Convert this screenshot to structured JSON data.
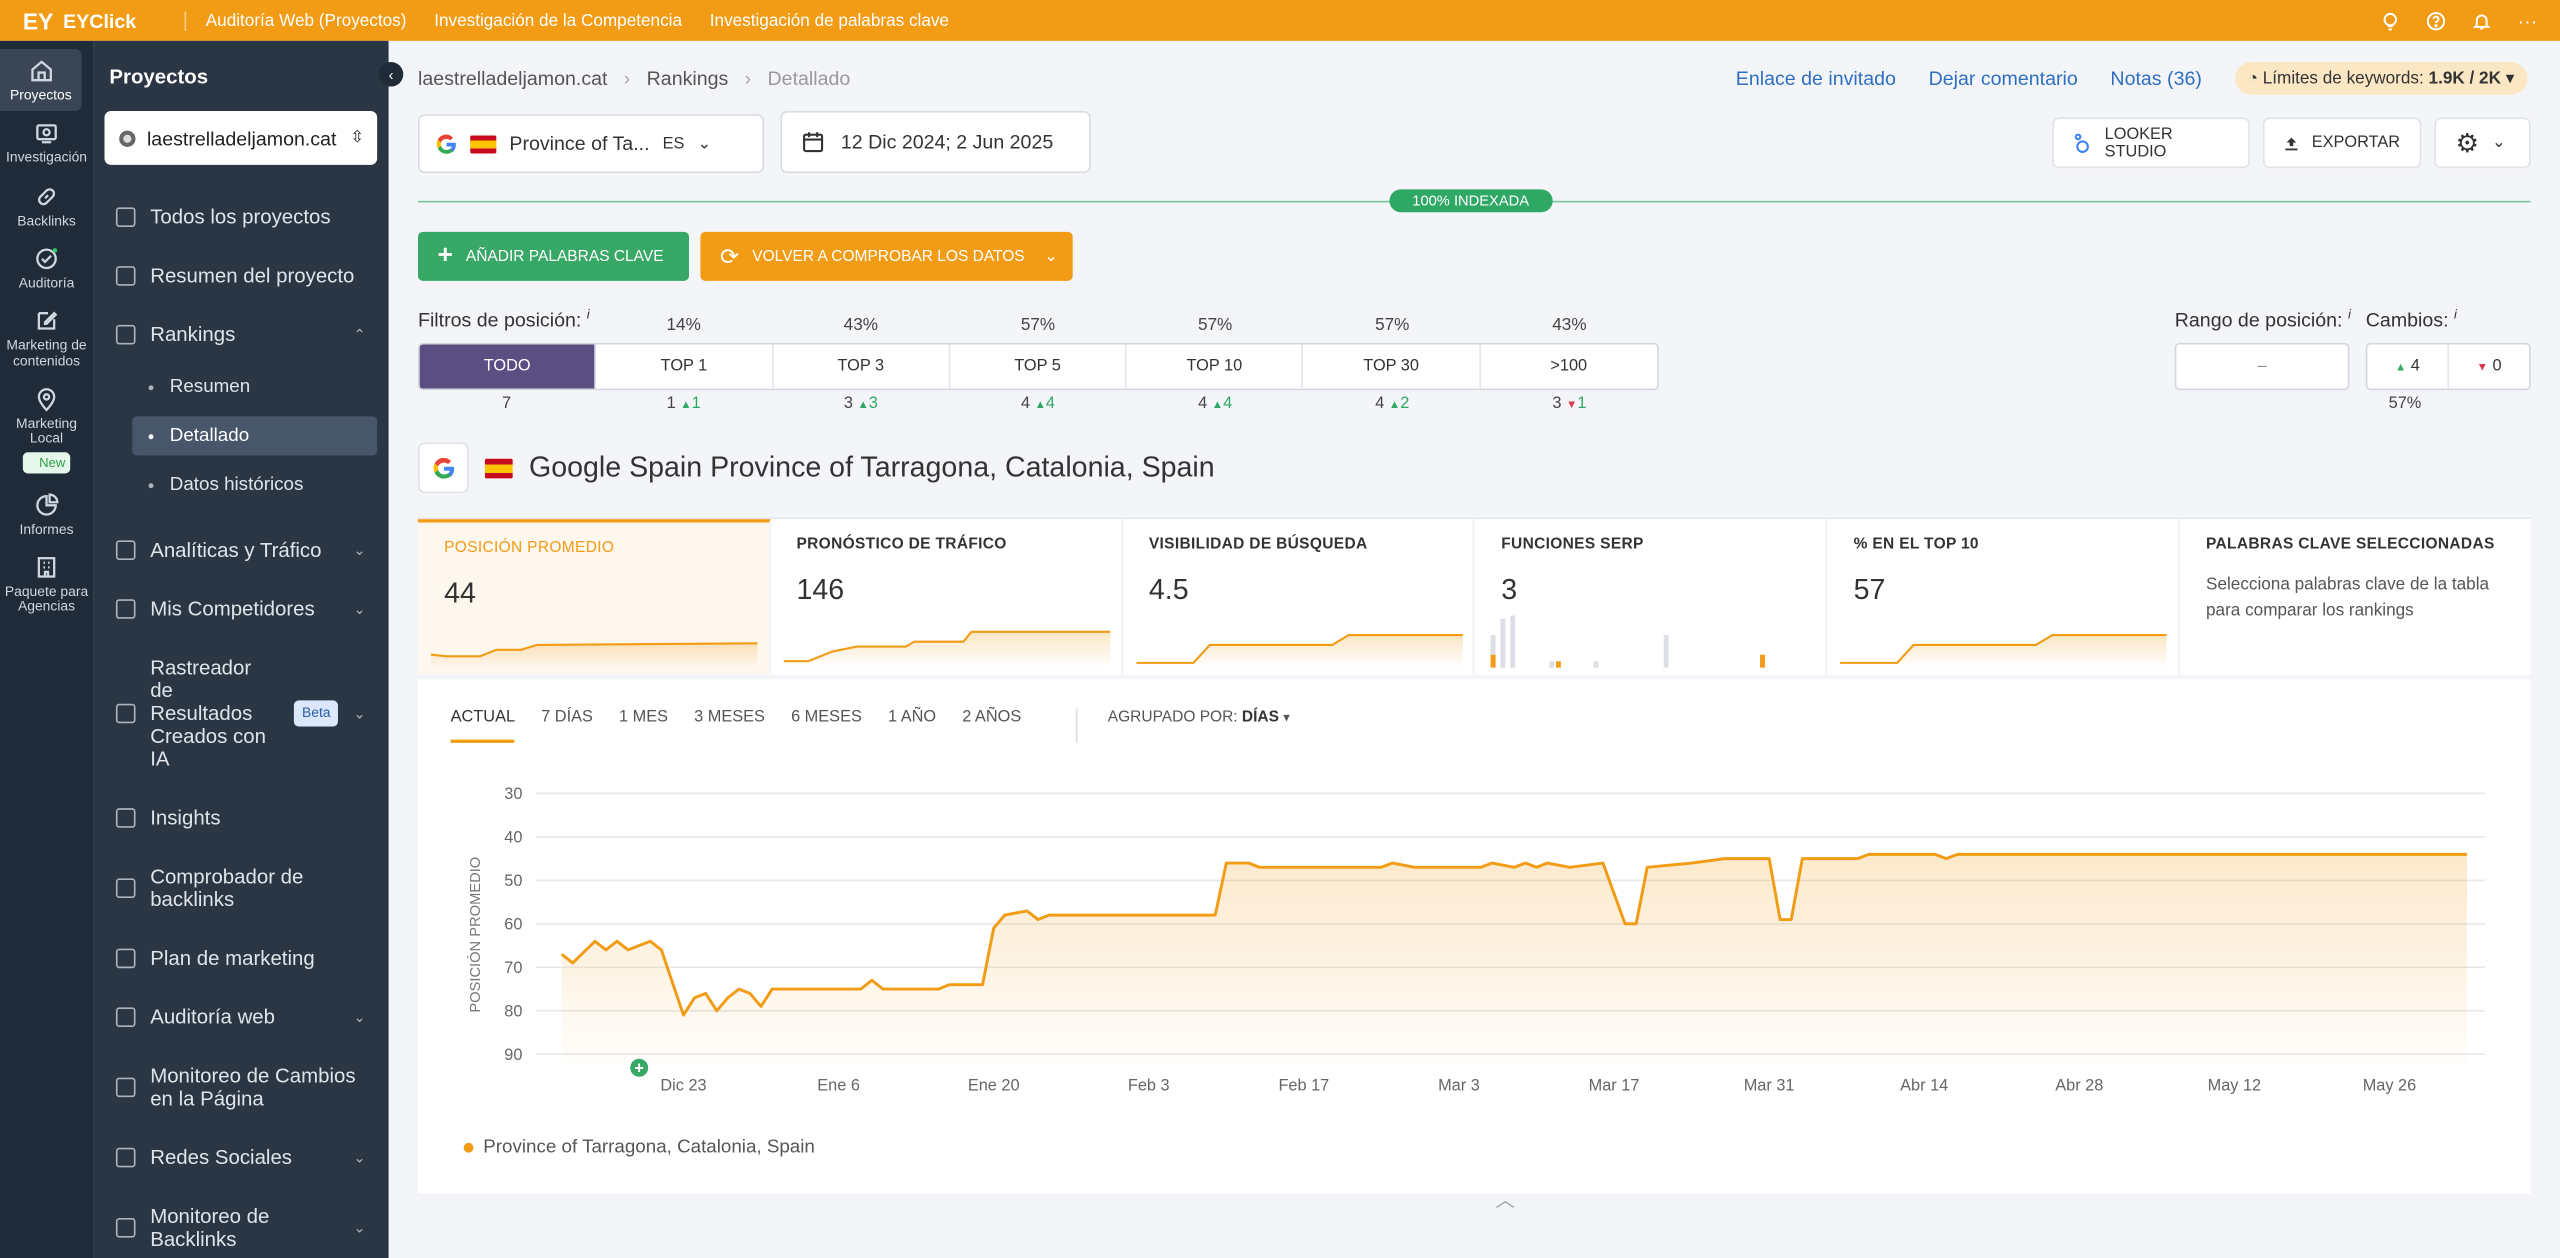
{
  "topbar": {
    "logo_mark": "EY",
    "brand": "EYClick",
    "nav": [
      "Auditoría Web (Proyectos)",
      "Investigación de la Competencia",
      "Investigación de palabras clave"
    ],
    "icons": [
      "bulb-icon",
      "help-icon",
      "bell-icon",
      "more-icon"
    ],
    "more": "···"
  },
  "rail": {
    "items": [
      {
        "label": "Proyectos",
        "icon": "home-icon"
      },
      {
        "label": "Investigación",
        "icon": "research-icon"
      },
      {
        "label": "Backlinks",
        "icon": "link-icon"
      },
      {
        "label": "Auditoría",
        "icon": "audit-icon"
      },
      {
        "label": "Marketing de contenidos",
        "icon": "edit-icon"
      },
      {
        "label": "Marketing Local",
        "icon": "pin-icon"
      },
      {
        "label": "Informes",
        "icon": "chart-pie-icon"
      },
      {
        "label": "Paquete para Agencias",
        "icon": "building-icon"
      }
    ],
    "new_badge": "New"
  },
  "sidebar": {
    "title": "Proyectos",
    "project": "laestrelladeljamon.cat",
    "items": [
      {
        "label": "Todos los proyectos"
      },
      {
        "label": "Resumen del proyecto"
      },
      {
        "label": "Rankings"
      },
      {
        "label": "Analíticas y Tráfico"
      },
      {
        "label": "Mis Competidores"
      },
      {
        "label": "Rastreador de Resultados Creados con IA"
      },
      {
        "label": "Insights"
      },
      {
        "label": "Comprobador de backlinks"
      },
      {
        "label": "Plan de marketing"
      },
      {
        "label": "Auditoría web"
      },
      {
        "label": "Monitoreo de Cambios en la Página"
      },
      {
        "label": "Redes Sociales"
      },
      {
        "label": "Monitoreo de Backlinks"
      }
    ],
    "rankings_sub": [
      "Resumen",
      "Detallado",
      "Datos históricos"
    ],
    "beta": "Beta"
  },
  "breadcrumb": [
    "laestrelladeljamon.cat",
    "Rankings",
    "Detallado"
  ],
  "toplinks": {
    "guest": "Enlace de invitado",
    "comment": "Dejar comentario",
    "notes": "Notas (36)",
    "kw_label": "Límites de keywords:",
    "kw_value": "1.9K / 2K"
  },
  "engine": {
    "location": "Province of Ta...",
    "lang": "ES"
  },
  "daterange": "12 Dic 2024; 2 Jun 2025",
  "buttons": {
    "looker": "LOOKER STUDIO",
    "export": "EXPORTAR",
    "add_keywords": "AÑADIR PALABRAS CLAVE",
    "recheck": "VOLVER A COMPROBAR LOS DATOS"
  },
  "indexed": "100% INDEXADA",
  "filters": {
    "label": "Filtros de posición:",
    "tabs": [
      {
        "label": "TODO",
        "pct": "",
        "count": "7",
        "delta": "",
        "dir": ""
      },
      {
        "label": "TOP 1",
        "pct": "14%",
        "count": "1",
        "delta": "1",
        "dir": "up"
      },
      {
        "label": "TOP 3",
        "pct": "43%",
        "count": "3",
        "delta": "3",
        "dir": "up"
      },
      {
        "label": "TOP 5",
        "pct": "57%",
        "count": "4",
        "delta": "4",
        "dir": "up"
      },
      {
        "label": "TOP 10",
        "pct": "57%",
        "count": "4",
        "delta": "4",
        "dir": "up"
      },
      {
        "label": "TOP 30",
        "pct": "57%",
        "count": "4",
        "delta": "2",
        "dir": "up"
      },
      {
        "label": ">100",
        "pct": "43%",
        "count": "3",
        "delta": "1",
        "dir": "down"
      }
    ],
    "range_label": "Rango de posición:",
    "range_value": "–",
    "changes_label": "Cambios:",
    "changes_up": "4",
    "changes_down": "0",
    "changes_pct": "57%"
  },
  "location_title": "Google Spain Province of Tarragona, Catalonia, Spain",
  "metrics": [
    {
      "title": "POSICIÓN PROMEDIO",
      "value": "44"
    },
    {
      "title": "PRONÓSTICO DE TRÁFICO",
      "value": "146"
    },
    {
      "title": "VISIBILIDAD DE BÚSQUEDA",
      "value": "4.5"
    },
    {
      "title": "FUNCIONES SERP",
      "value": "3"
    },
    {
      "title": "% EN EL TOP 10",
      "value": "57"
    },
    {
      "title": "PALABRAS CLAVE SELECCIONADAS",
      "value": "",
      "desc": "Selecciona palabras clave de la tabla para comparar los rankings"
    }
  ],
  "periods": [
    "ACTUAL",
    "7 DÍAS",
    "1 MES",
    "3 MESES",
    "6 MESES",
    "1 AÑO",
    "2 AÑOS"
  ],
  "groupby_label": "AGRUPADO POR:",
  "groupby_value": "DÍAS",
  "colors": {
    "accent": "#f29b14",
    "green": "#37a866",
    "purple": "#5b4e83",
    "sidebar": "#2a3644"
  },
  "chart_data": {
    "type": "line",
    "title": "",
    "ylabel": "POSICIÓN PROMEDIO",
    "xlabel": "",
    "y_reversed": true,
    "ylim": [
      30,
      92
    ],
    "yticks": [
      30,
      40,
      50,
      60,
      70,
      80,
      90
    ],
    "x_range": [
      "2024-12-12",
      "2025-06-02"
    ],
    "xtick_labels": [
      "Dic 23",
      "Ene 6",
      "Ene 20",
      "Feb 3",
      "Feb 17",
      "Mar 3",
      "Mar 17",
      "Mar 31",
      "Abr 14",
      "Abr 28",
      "May 12",
      "May 26"
    ],
    "xtick_dates": [
      "2024-12-23",
      "2025-01-06",
      "2025-01-20",
      "2025-02-03",
      "2025-02-17",
      "2025-03-03",
      "2025-03-17",
      "2025-03-31",
      "2025-04-14",
      "2025-04-28",
      "2025-05-12",
      "2025-05-26"
    ],
    "series": [
      {
        "name": "Province of Tarragona, Catalonia, Spain",
        "points": [
          [
            "2024-12-12",
            67
          ],
          [
            "2024-12-13",
            69
          ],
          [
            "2024-12-15",
            64
          ],
          [
            "2024-12-16",
            66
          ],
          [
            "2024-12-17",
            64
          ],
          [
            "2024-12-18",
            66
          ],
          [
            "2024-12-20",
            64
          ],
          [
            "2024-12-21",
            66
          ],
          [
            "2024-12-23",
            81
          ],
          [
            "2024-12-24",
            77
          ],
          [
            "2024-12-25",
            76
          ],
          [
            "2024-12-26",
            80
          ],
          [
            "2024-12-27",
            77
          ],
          [
            "2024-12-28",
            75
          ],
          [
            "2024-12-29",
            76
          ],
          [
            "2024-12-30",
            79
          ],
          [
            "2024-12-31",
            75
          ],
          [
            "2025-01-04",
            75
          ],
          [
            "2025-01-06",
            75
          ],
          [
            "2025-01-08",
            75
          ],
          [
            "2025-01-09",
            73
          ],
          [
            "2025-01-10",
            75
          ],
          [
            "2025-01-15",
            75
          ],
          [
            "2025-01-16",
            74
          ],
          [
            "2025-01-19",
            74
          ],
          [
            "2025-01-20",
            61
          ],
          [
            "2025-01-21",
            58
          ],
          [
            "2025-01-23",
            57
          ],
          [
            "2025-01-24",
            59
          ],
          [
            "2025-01-25",
            58
          ],
          [
            "2025-02-03",
            58
          ],
          [
            "2025-02-09",
            58
          ],
          [
            "2025-02-10",
            46
          ],
          [
            "2025-02-12",
            46
          ],
          [
            "2025-02-13",
            47
          ],
          [
            "2025-02-24",
            47
          ],
          [
            "2025-02-25",
            46
          ],
          [
            "2025-02-27",
            47
          ],
          [
            "2025-03-05",
            47
          ],
          [
            "2025-03-06",
            46
          ],
          [
            "2025-03-08",
            47
          ],
          [
            "2025-03-09",
            46
          ],
          [
            "2025-03-10",
            47
          ],
          [
            "2025-03-11",
            46
          ],
          [
            "2025-03-13",
            47
          ],
          [
            "2025-03-16",
            46
          ],
          [
            "2025-03-18",
            60
          ],
          [
            "2025-03-19",
            60
          ],
          [
            "2025-03-20",
            47
          ],
          [
            "2025-03-24",
            46
          ],
          [
            "2025-03-27",
            45
          ],
          [
            "2025-03-31",
            45
          ],
          [
            "2025-04-01",
            59
          ],
          [
            "2025-04-02",
            59
          ],
          [
            "2025-04-03",
            45
          ],
          [
            "2025-04-08",
            45
          ],
          [
            "2025-04-09",
            44
          ],
          [
            "2025-04-15",
            44
          ],
          [
            "2025-04-16",
            45
          ],
          [
            "2025-04-17",
            44
          ],
          [
            "2025-06-02",
            44
          ]
        ]
      }
    ],
    "annotations": [
      {
        "date": "2024-12-19",
        "label": "+"
      }
    ],
    "grid": true,
    "legend": "bottom-left"
  }
}
